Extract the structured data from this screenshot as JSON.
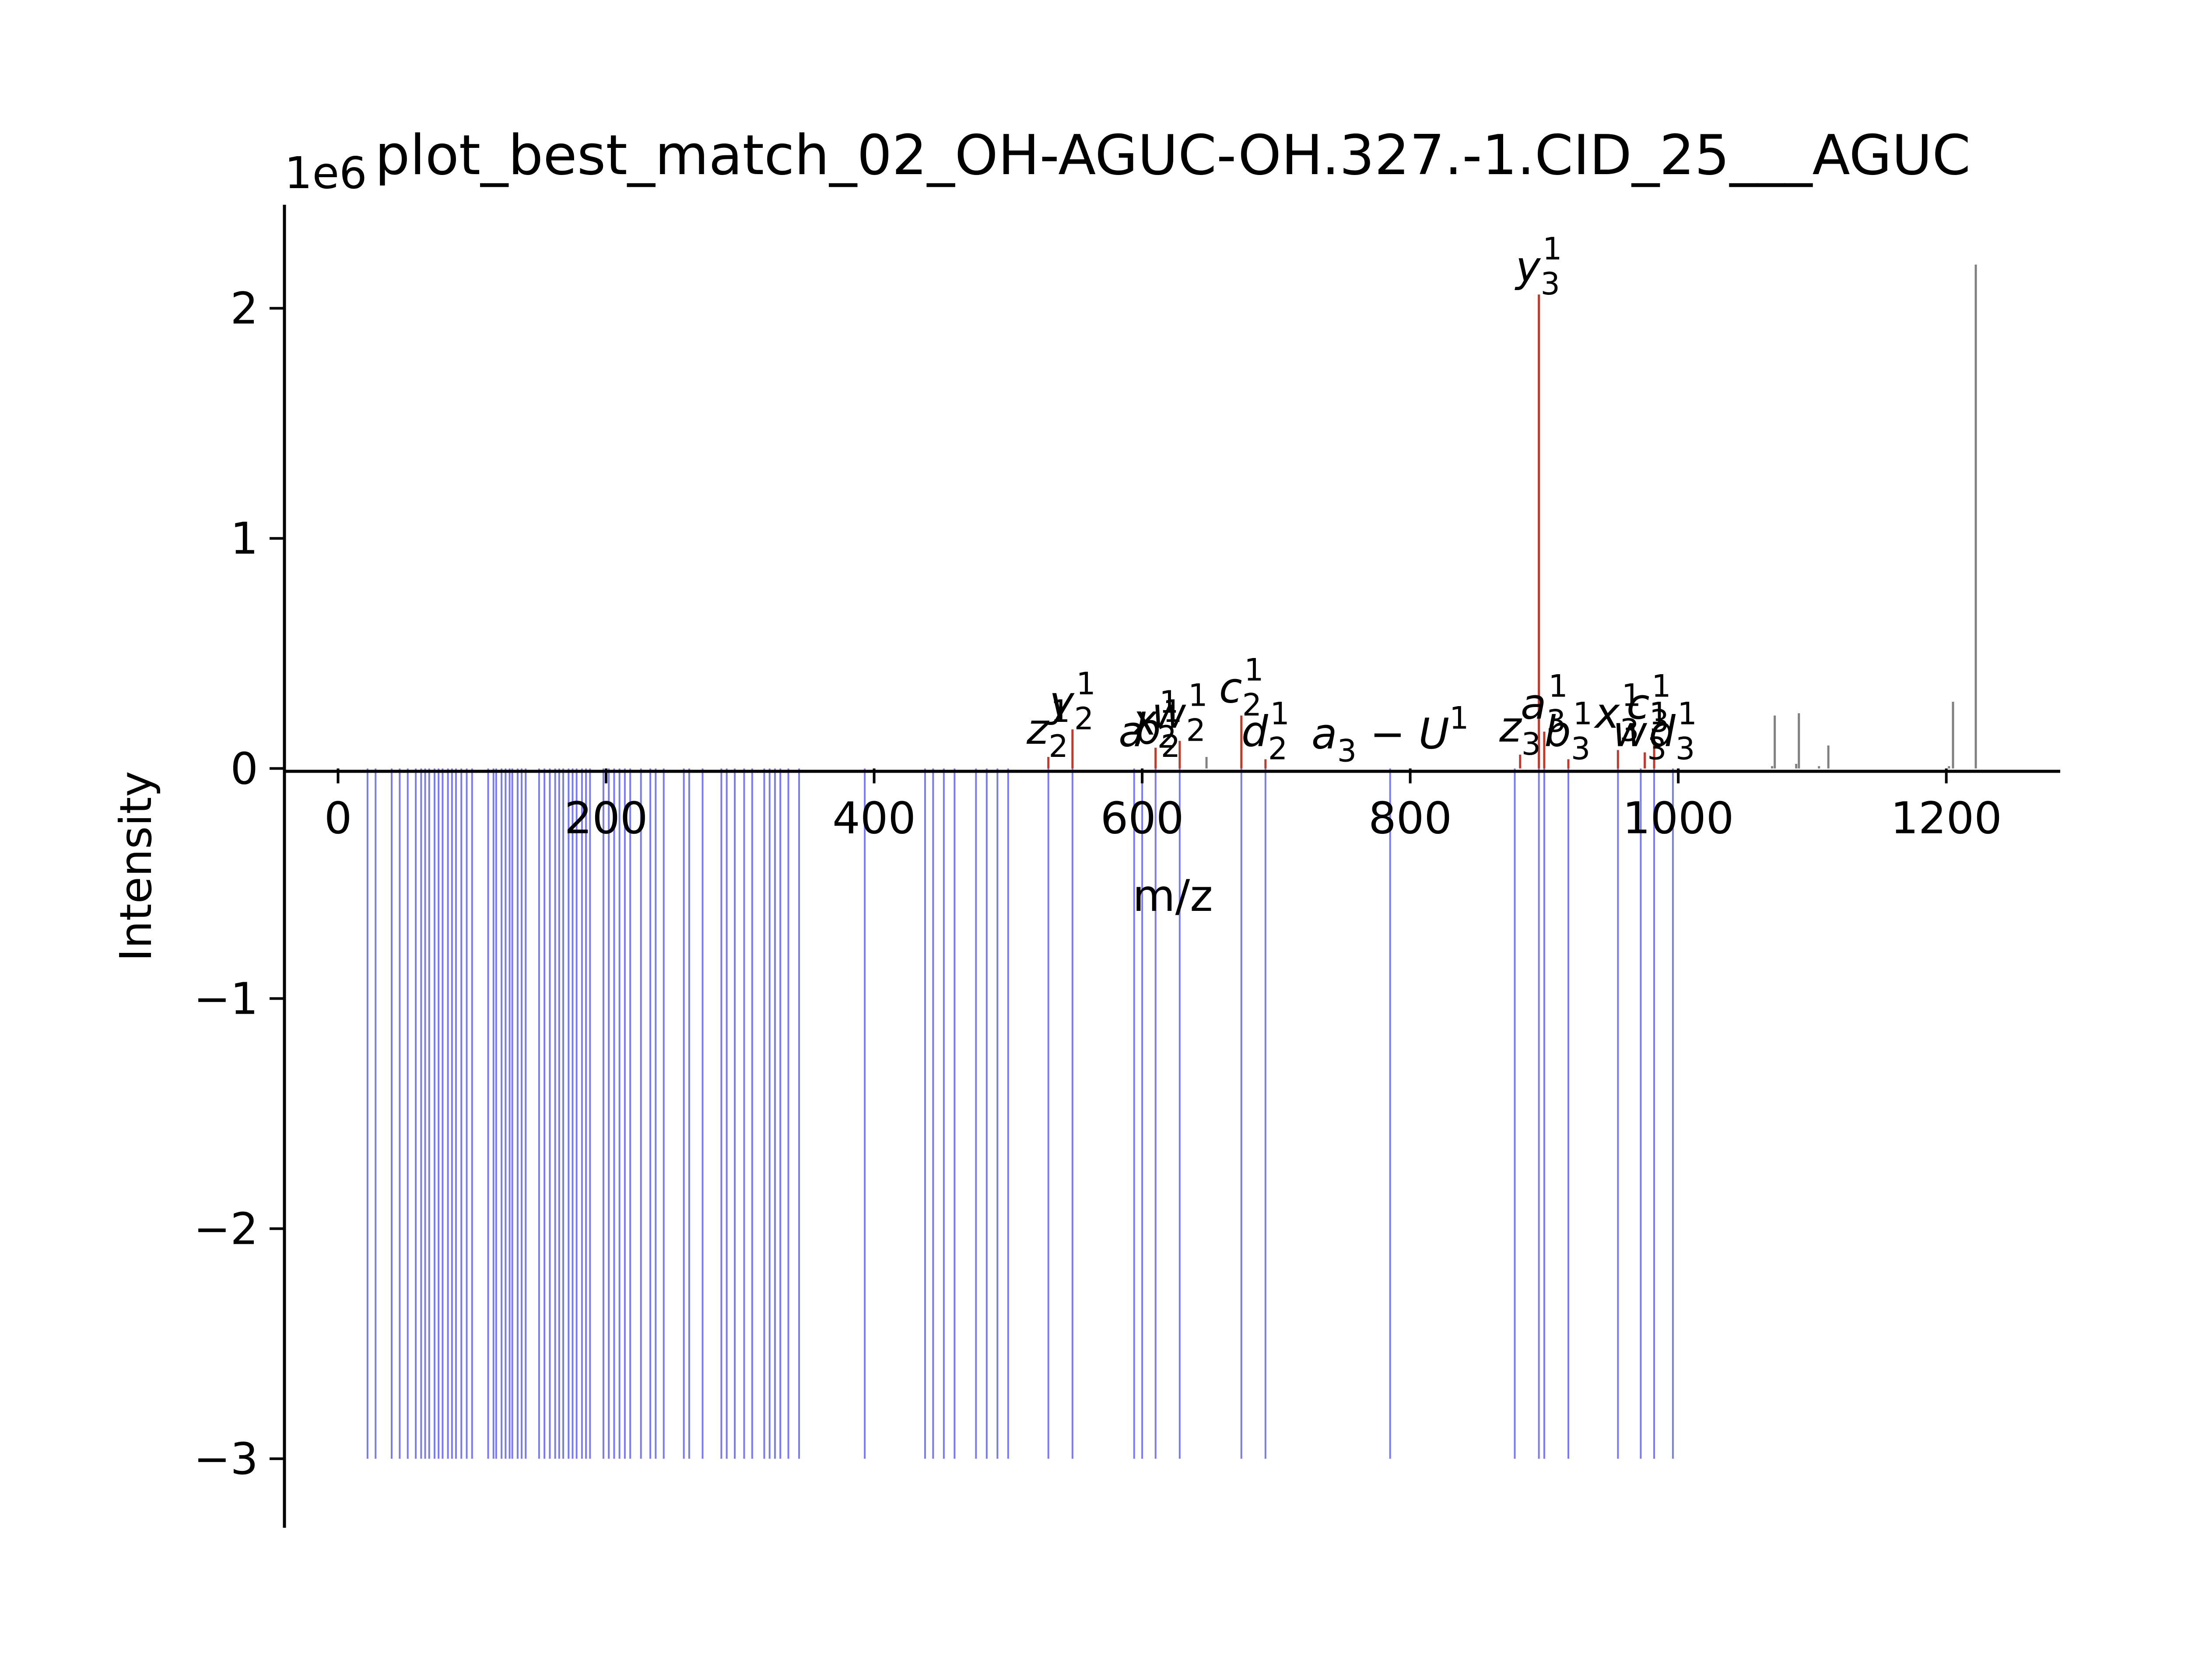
{
  "chart_data": {
    "type": "bar",
    "title": "plot_best_match_02_OH-AGUC-OH.327.-1.CID_25___AGUC",
    "xlabel": "m/z",
    "ylabel": "Intensity",
    "y_offset_label": "1e6",
    "xlim": [
      -40,
      1285
    ],
    "ylim": [
      -3.3,
      2.45
    ],
    "x_ticks": [
      {
        "value": 0,
        "label": "0"
      },
      {
        "value": 200,
        "label": "200"
      },
      {
        "value": 400,
        "label": "400"
      },
      {
        "value": 600,
        "label": "600"
      },
      {
        "value": 800,
        "label": "800"
      },
      {
        "value": 1000,
        "label": "1000"
      },
      {
        "value": 1200,
        "label": "1200"
      }
    ],
    "y_ticks": [
      {
        "value": 2,
        "label": "2"
      },
      {
        "value": 1,
        "label": "1"
      },
      {
        "value": 0,
        "label": "0"
      },
      {
        "value": -1,
        "label": "−1"
      },
      {
        "value": -2,
        "label": "−2"
      },
      {
        "value": -3,
        "label": "−3"
      }
    ],
    "colors": {
      "matched": "#c0392b",
      "unmatched": "#808080",
      "theoretical": "#3333ee"
    },
    "series": [
      {
        "key": "matched",
        "x": [
          530,
          548,
          610,
          628,
          674,
          692,
          882,
          896,
          900,
          918,
          955,
          975,
          982
        ],
        "y": [
          0.05,
          0.17,
          0.09,
          0.12,
          0.23,
          0.04,
          0.06,
          2.06,
          0.16,
          0.04,
          0.08,
          0.07,
          0.13
        ]
      },
      {
        "key": "unmatched",
        "x": [
          648,
          1070,
          1072,
          1088,
          1090,
          1105,
          1112,
          1202,
          1205,
          1222
        ],
        "y": [
          0.05,
          0.01,
          0.23,
          0.02,
          0.24,
          0.01,
          0.1,
          0.01,
          0.29,
          2.19
        ]
      },
      {
        "key": "theoretical",
        "y_value": -3,
        "x": [
          22,
          28,
          40,
          46,
          52,
          58,
          62,
          65,
          68,
          72,
          75,
          78,
          82,
          85,
          88,
          92,
          96,
          100,
          112,
          116,
          118,
          122,
          125,
          128,
          130,
          134,
          137,
          140,
          150,
          154,
          158,
          162,
          165,
          168,
          172,
          175,
          178,
          182,
          185,
          188,
          198,
          202,
          206,
          210,
          214,
          218,
          226,
          233,
          237,
          243,
          258,
          262,
          272,
          286,
          290,
          296,
          303,
          309,
          318,
          322,
          326,
          330,
          336,
          344,
          393,
          438,
          444,
          452,
          460,
          476,
          484,
          492,
          500,
          530,
          548,
          594,
          600,
          610,
          628,
          674,
          692,
          785,
          878,
          896,
          900,
          918,
          955,
          972,
          982,
          996
        ]
      }
    ],
    "annotations": [
      {
        "base": "y",
        "sup": "1",
        "sub": "3",
        "x": 896,
        "y": 2.06
      },
      {
        "base": "y",
        "sup": "1",
        "sub": "2",
        "x": 548,
        "y": 0.17
      },
      {
        "base": "z",
        "sup": "1",
        "sub": "2",
        "x": 530,
        "y": 0.05
      },
      {
        "base": "a",
        "sup": "",
        "sub": "",
        "x": 592,
        "y": 0.04
      },
      {
        "base": "b",
        "sup": "1",
        "sub": "2",
        "x": 612,
        "y": 0.05
      },
      {
        "base": "x",
        "sup": "1",
        "sub": "2",
        "x": 610,
        "y": 0.09
      },
      {
        "base": "w",
        "sup": "1",
        "sub": "2",
        "x": 628,
        "y": 0.12
      },
      {
        "base": "c",
        "sup": "1",
        "sub": "2",
        "x": 674,
        "y": 0.23
      },
      {
        "base": "d",
        "sup": "1",
        "sub": "2",
        "x": 692,
        "y": 0.04
      },
      {
        "base": "a",
        "sup": "1",
        "sub": "3",
        "mid": " − U",
        "x": 785,
        "y": 0.03
      },
      {
        "base": "z",
        "sup": "",
        "sub": "3",
        "x": 882,
        "y": 0.06
      },
      {
        "base": "a",
        "sup": "1",
        "sub": "3",
        "x": 900,
        "y": 0.16
      },
      {
        "base": "b",
        "sup": "1",
        "sub": "3",
        "x": 918,
        "y": 0.04
      },
      {
        "base": "x",
        "sup": "1",
        "sub": "3",
        "x": 955,
        "y": 0.12
      },
      {
        "base": "c",
        "sup": "1",
        "sub": "3",
        "x": 978,
        "y": 0.16
      },
      {
        "base": "w",
        "sup": "1",
        "sub": "3",
        "x": 972,
        "y": 0.04
      },
      {
        "base": "d",
        "sup": "1",
        "sub": "3",
        "x": 996,
        "y": 0.04
      }
    ]
  }
}
